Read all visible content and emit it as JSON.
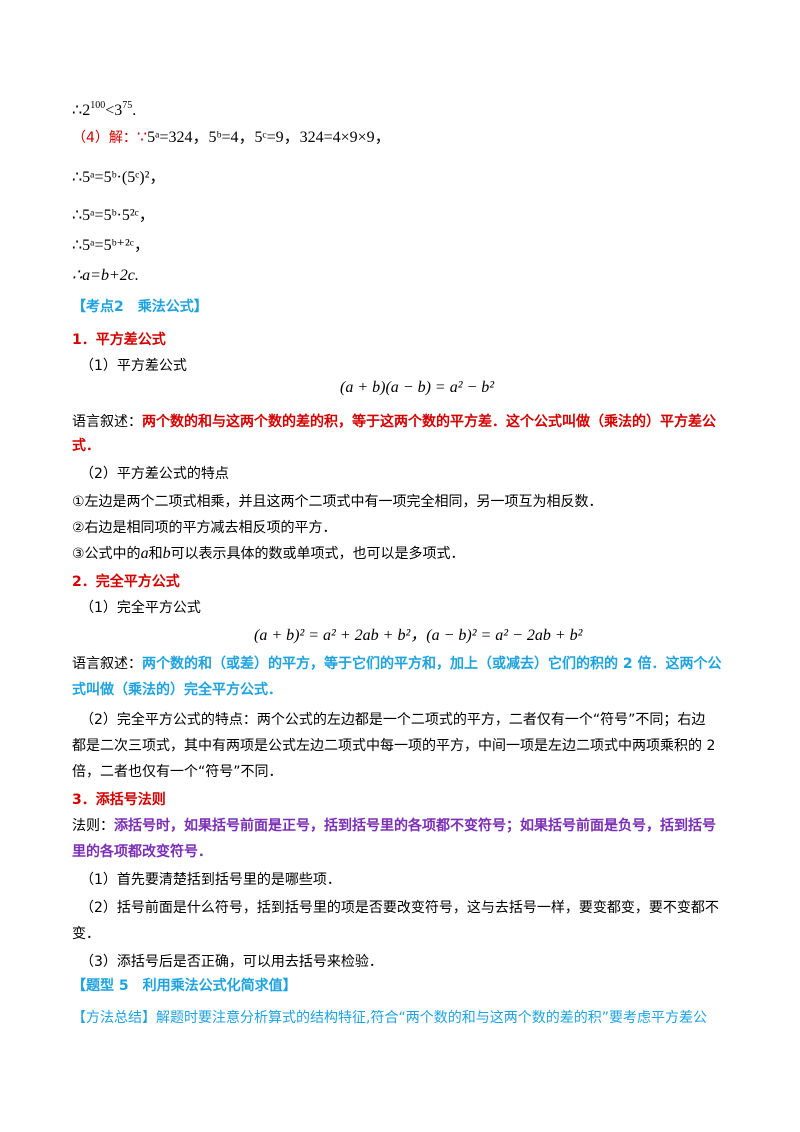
{
  "therefore": "∴",
  "line1": {
    "base1": "2",
    "exp1": "100",
    "lt": "<",
    "base2": "3",
    "exp2": "75",
    "end": "."
  },
  "part4": {
    "label": "（4）解：",
    "because": "∵",
    "text": "5ᵃ=324，5ᵇ=4，5ᶜ=9，324=4×9×9，"
  },
  "step1": "∴5ᵃ=5ᵇ·(5ᶜ)²，",
  "step2": "∴5ᵃ=5ᵇ·5²ᶜ，",
  "step3": "∴5ᵃ=5ᵇ⁺²ᶜ，",
  "step4": "∴a=b+2c.",
  "kaodian": "【考点2　乘法公式】",
  "s1": {
    "title": "1．平方差公式",
    "p1": "（1）平方差公式",
    "formula": "(a + b)(a − b) = a² − b²",
    "desc_label": "语言叙述：",
    "desc_1": "两个数的和与这两个数的差的积，等于这两个数的平方差．这个公式叫做（乘法的）平方差公",
    "desc_2": "式．",
    "p2": "（2）平方差公式的特点",
    "c1": "①左边是两个二项式相乘，并且这两个二项式中有一项完全相同，另一项互为相反数．",
    "c2": "②右边是相同项的平方减去相反项的平方．",
    "c3_pre": "③公式中的",
    "c3_a": "a",
    "c3_mid": "和",
    "c3_b": "b",
    "c3_post": "可以表示具体的数或单项式，也可以是多项式．"
  },
  "s2": {
    "title": "2．完全平方公式",
    "p1": "（1）完全平方公式",
    "formula": "(a + b)² = a² + 2ab + b²，(a − b)² = a² − 2ab + b²",
    "desc_label": "语言叙述：",
    "desc_1": "两个数的和（或差）的平方，等于它们的平方和，加上（或减去）它们的积的 2 倍．这两个公",
    "desc_2": "式叫做（乘法的）完全平方公式．",
    "p2_1": "（2）完全平方公式的特点：两个公式的左边都是一个二项式的平方，二者仅有一个“符号”不同；右边",
    "p2_2": "都是二次三项式，其中有两项是公式左边二项式中每一项的平方，中间一项是左边二项式中两项乘积的 2",
    "p2_3": "倍，二者也仅有一个“符号”不同．"
  },
  "s3": {
    "title": "3．添括号法则",
    "rule_label": "法则：",
    "rule_1": "添括号时，如果括号前面是正号，括到括号里的各项都不变符号；如果括号前面是负号，括到括号",
    "rule_2": "里的各项都改变符号．",
    "n1": "（1）首先要清楚括到括号里的是哪些项．",
    "n2_1": "（2）括号前面是什么符号，括到括号里的项是否要改变符号，这与去括号一样，要变都变，要不变都不",
    "n2_2": "变．",
    "n3": "（3）添括号后是否正确，可以用去括号来检验．"
  },
  "tixing": "【题型 5　利用乘法公式化简求值】",
  "method": "【方法总结】解题时要注意分析算式的结构特征,符合“两个数的和与这两个数的差的积”要考虑平方差公",
  "colors": {
    "red": "#d40000",
    "cyan": "#1fa3de",
    "purple": "#7b2fb5"
  }
}
